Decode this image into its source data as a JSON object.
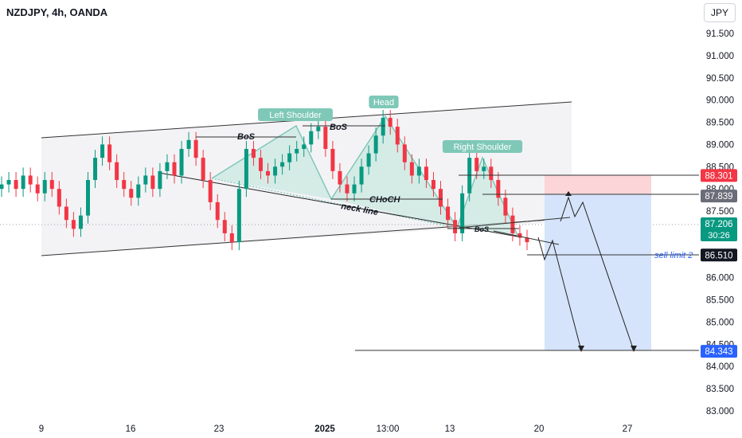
{
  "header": {
    "title": "NZDJPY, 4h, OANDA",
    "currency": "JPY"
  },
  "colors": {
    "up": "#089981",
    "down": "#f23645",
    "pattern": "#7fc8b8",
    "channel_fill": "#f3f3f5",
    "sell_zone": "#fbd5d8",
    "target_zone": "#d5e4fb"
  },
  "chart_data": {
    "type": "candlestick",
    "y_axis": {
      "min": 83.0,
      "max": 91.5,
      "ticks": [
        "91.500",
        "91.000",
        "90.500",
        "90.000",
        "89.500",
        "89.000",
        "88.500",
        "88.000",
        "87.500",
        "87.000",
        "86.500",
        "86.000",
        "85.500",
        "85.000",
        "84.500",
        "84.000",
        "83.500",
        "83.000"
      ]
    },
    "x_ticks": [
      "9",
      "16",
      "23",
      "2025",
      "13:00",
      "13",
      "20",
      "27"
    ],
    "closes": [
      88.1,
      88.2,
      88.0,
      88.3,
      88.1,
      87.9,
      88.2,
      88.0,
      87.6,
      87.3,
      87.1,
      87.4,
      88.2,
      88.7,
      89.0,
      88.6,
      88.2,
      88.0,
      87.8,
      88.1,
      88.3,
      88.0,
      88.4,
      88.6,
      88.3,
      88.9,
      89.1,
      88.7,
      88.2,
      87.7,
      87.3,
      87.0,
      86.8,
      88.0,
      88.9,
      88.7,
      88.4,
      88.3,
      88.5,
      88.6,
      88.8,
      88.9,
      89.0,
      89.3,
      89.4,
      88.9,
      88.4,
      88.1,
      87.9,
      88.1,
      88.5,
      88.8,
      89.2,
      89.6,
      89.4,
      89.0,
      88.6,
      88.3,
      88.5,
      88.2,
      88.0,
      87.6,
      87.3,
      87.0,
      87.9,
      88.7,
      88.4,
      88.5,
      88.2,
      87.8,
      87.4,
      87.0,
      86.9,
      86.8
    ],
    "price_labels": [
      {
        "value": "88.301",
        "price": 88.301,
        "bg": "#f23645",
        "fg": "#ffffff"
      },
      {
        "value": "87.839",
        "price": 87.839,
        "bg": "#6a6d78",
        "fg": "#ffffff"
      },
      {
        "value": "87.206",
        "sub": "30:26",
        "price": 87.206,
        "bg": "#089981",
        "fg": "#ffffff"
      },
      {
        "value": "86.510",
        "price": 86.51,
        "bg": "#131722",
        "fg": "#ffffff"
      },
      {
        "value": "84.343",
        "price": 84.343,
        "bg": "#2962ff",
        "fg": "#ffffff"
      }
    ],
    "pattern_labels": [
      {
        "text": "Left Shoulder",
        "price": 89.9
      },
      {
        "text": "Head",
        "price": 90.2
      },
      {
        "text": "Right Shoulder",
        "price": 89.3
      }
    ],
    "annotations": [
      "BoS",
      "BoS",
      "CHoCH",
      "neck line",
      "BoS"
    ],
    "order_label": "sell limit 2"
  }
}
